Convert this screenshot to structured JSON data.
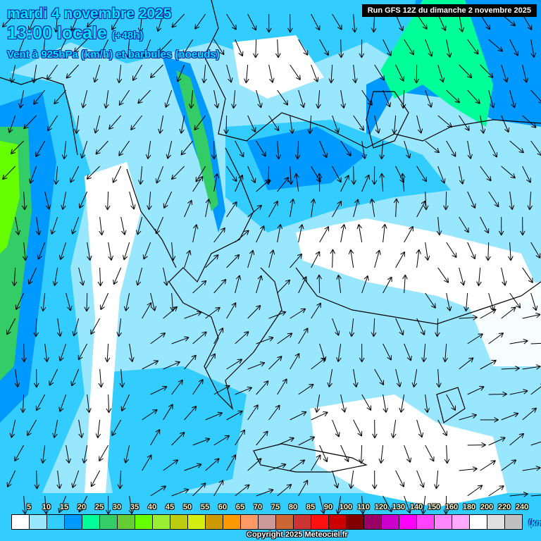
{
  "header": {
    "date": "mardi 4 novembre 2025",
    "time": "13:00 locale",
    "lead": "(+48h)",
    "subtitle": "Vent à 925hPa (km/h) et barbules (noeuds)",
    "run": "Run GFS 12Z du dimanche 2 novembre 2025"
  },
  "legend": {
    "labels": [
      "5",
      "10",
      "15",
      "20",
      "25",
      "30",
      "35",
      "40",
      "45",
      "50",
      "55",
      "60",
      "65",
      "70",
      "75",
      "80",
      "85",
      "90",
      "100",
      "110",
      "120",
      "130",
      "140",
      "150",
      "160",
      "180",
      "200",
      "220",
      "240"
    ],
    "colors": [
      "#ffffff",
      "#99e6ff",
      "#33ccff",
      "#0099ff",
      "#00ff99",
      "#33cc66",
      "#66cc33",
      "#66ff00",
      "#99ee33",
      "#bbcc11",
      "#d4ee11",
      "#cc9900",
      "#ff9900",
      "#ff9966",
      "#cc9999",
      "#cc6633",
      "#cc3333",
      "#ff1111",
      "#cc0000",
      "#800000",
      "#990066",
      "#cc00cc",
      "#ff00ff",
      "#ff44ff",
      "#ff88ff",
      "#ffaaff",
      "#ffffff",
      "#e0e0e0",
      "#c0c0c0"
    ],
    "unit": "(km/h)"
  },
  "footer": {
    "copyright": "Copyright 2025 Meteociel.fr"
  }
}
